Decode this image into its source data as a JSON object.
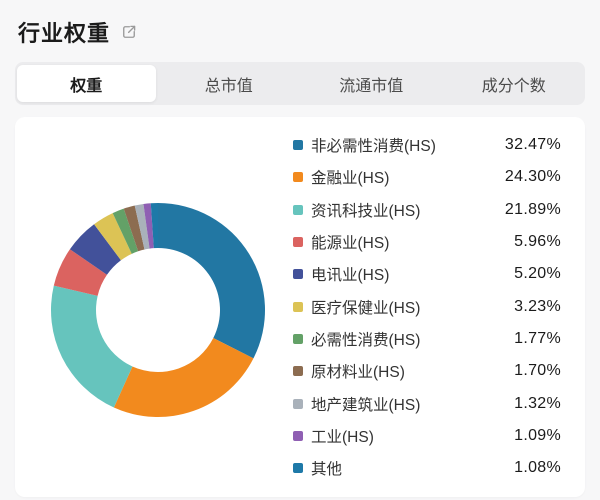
{
  "header": {
    "title": "行业权重"
  },
  "tabs": [
    {
      "label": "权重",
      "active": true
    },
    {
      "label": "总市值",
      "active": false
    },
    {
      "label": "流通市值",
      "active": false
    },
    {
      "label": "成分个数",
      "active": false
    }
  ],
  "chart_data": {
    "type": "pie",
    "title": "行业权重",
    "donut": true,
    "start_angle_deg": 0,
    "direction": "clockwise",
    "inner_radius_ratio": 0.58,
    "legend_position": "right",
    "categories": [
      "非必需性消费(HS)",
      "金融业(HS)",
      "资讯科技业(HS)",
      "能源业(HS)",
      "电讯业(HS)",
      "医疗保健业(HS)",
      "必需性消费(HS)",
      "原材料业(HS)",
      "地产建筑业(HS)",
      "工业(HS)",
      "其他"
    ],
    "values": [
      32.47,
      24.3,
      21.89,
      5.96,
      5.2,
      3.23,
      1.77,
      1.7,
      1.32,
      1.09,
      1.08
    ],
    "value_labels": [
      "32.47%",
      "24.30%",
      "21.89%",
      "5.96%",
      "5.20%",
      "3.23%",
      "1.77%",
      "1.70%",
      "1.32%",
      "1.09%",
      "1.08%"
    ],
    "colors": [
      "#2277a3",
      "#f28a1e",
      "#66c4bd",
      "#db6360",
      "#42519a",
      "#dcc355",
      "#63a167",
      "#8c6c50",
      "#a9b1ba",
      "#8f5fb3",
      "#1e79a8"
    ]
  }
}
